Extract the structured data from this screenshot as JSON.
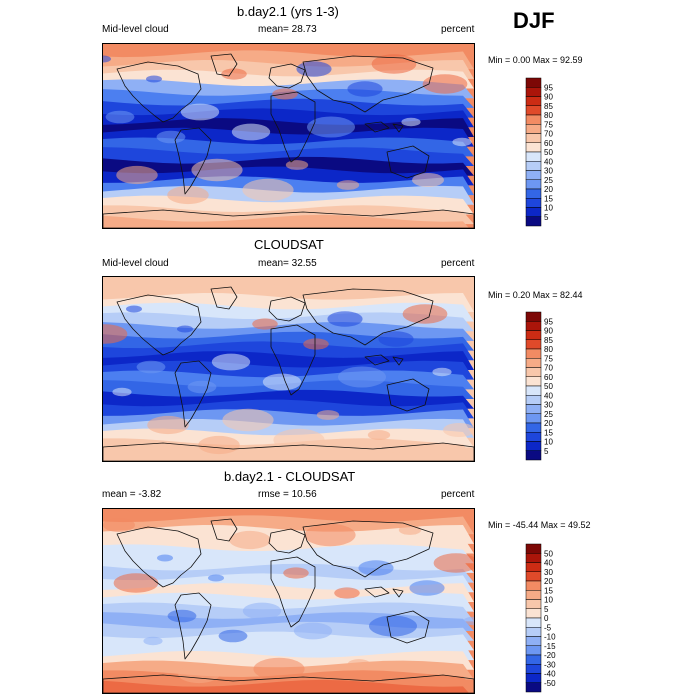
{
  "season": "DJF",
  "colors": {
    "abs_scale": [
      "#0a0a82",
      "#0c27c8",
      "#1e46dc",
      "#3366e6",
      "#4c7ff0",
      "#6d97f2",
      "#8fb0f5",
      "#b6cdf7",
      "#d8e6fa",
      "#fbe3d3",
      "#f8c7ab",
      "#f6ab87",
      "#f28b63",
      "#ec6a44",
      "#e04a2a",
      "#cc2c14",
      "#ab150a",
      "#7d0806"
    ],
    "diff_scale": [
      "#0a0a82",
      "#0c27c8",
      "#1e46dc",
      "#3366e6",
      "#4c7ff0",
      "#6d97f2",
      "#8fb0f5",
      "#b6cdf7",
      "#d8e6fa",
      "#fbe3d3",
      "#f8c7ab",
      "#f6ab87",
      "#f28b63",
      "#ec6a44",
      "#e04a2a",
      "#cc2c14",
      "#ab150a",
      "#7d0806"
    ]
  },
  "panels": [
    {
      "title": "b.day2.1 (yrs 1-3)",
      "left_label": "Mid-level cloud",
      "center_label": "mean=  28.73",
      "right_label": "percent",
      "minmax": "Min =   0.00 Max =  92.59"
    },
    {
      "title": "CLOUDSAT",
      "left_label": "Mid-level cloud",
      "center_label": "mean=  32.55",
      "right_label": "percent",
      "minmax": "Min =   0.20 Max =  82.44"
    },
    {
      "title": "b.day2.1 - CLOUDSAT",
      "left_label": "mean =  -3.82",
      "center_label": "rmse =  10.56",
      "right_label": "percent",
      "minmax": "Min = -45.44 Max =  49.52"
    }
  ],
  "chart_data": [
    {
      "type": "heatmap",
      "title": "b.day2.1 (yrs 1-3)",
      "variable": "Mid-level cloud",
      "units": "percent",
      "mean": 28.73,
      "min": 0.0,
      "max": 92.59,
      "colorbar_ticks": [
        95,
        90,
        85,
        80,
        75,
        70,
        60,
        50,
        40,
        30,
        25,
        20,
        15,
        10,
        5
      ]
    },
    {
      "type": "heatmap",
      "title": "CLOUDSAT",
      "variable": "Mid-level cloud",
      "units": "percent",
      "mean": 32.55,
      "min": 0.2,
      "max": 82.44,
      "colorbar_ticks": [
        95,
        90,
        85,
        80,
        75,
        70,
        60,
        50,
        40,
        30,
        25,
        20,
        15,
        10,
        5
      ]
    },
    {
      "type": "heatmap",
      "title": "b.day2.1 - CLOUDSAT",
      "units": "percent",
      "mean": -3.82,
      "rmse": 10.56,
      "min": -45.44,
      "max": 49.52,
      "colorbar_ticks": [
        50,
        40,
        30,
        20,
        15,
        10,
        5,
        0,
        -5,
        -10,
        -15,
        -20,
        -30,
        -40,
        -50
      ]
    }
  ]
}
